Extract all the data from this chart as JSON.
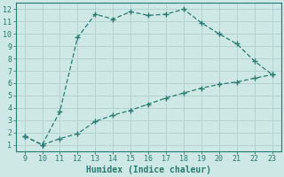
{
  "x_upper": [
    9,
    10,
    11,
    12,
    13,
    14,
    15,
    16,
    17,
    18,
    19,
    20,
    21,
    22,
    23
  ],
  "y_upper": [
    1.7,
    1.0,
    3.7,
    9.7,
    11.6,
    11.2,
    11.8,
    11.5,
    11.6,
    12.0,
    10.9,
    10.0,
    9.2,
    7.8,
    6.7
  ],
  "x_lower": [
    9,
    10,
    11,
    12,
    13,
    14,
    15,
    16,
    17,
    18,
    19,
    20,
    21,
    22,
    23
  ],
  "y_lower": [
    1.7,
    1.0,
    1.5,
    1.9,
    2.9,
    3.4,
    3.8,
    4.3,
    4.8,
    5.2,
    5.6,
    5.9,
    6.1,
    6.4,
    6.7
  ],
  "line_color": "#2a7a72",
  "bg_color": "#cde8e5",
  "grid_color": "#b0d0cc",
  "xlabel": "Humidex (Indice chaleur)",
  "xlim": [
    8.5,
    23.5
  ],
  "ylim": [
    0.5,
    12.5
  ],
  "xticks": [
    9,
    10,
    11,
    12,
    13,
    14,
    15,
    16,
    17,
    18,
    19,
    20,
    21,
    22,
    23
  ],
  "yticks": [
    1,
    2,
    3,
    4,
    5,
    6,
    7,
    8,
    9,
    10,
    11,
    12
  ],
  "tick_fontsize": 6,
  "xlabel_fontsize": 7,
  "marker_upper": "+",
  "marker_lower": "+",
  "marker_size": 4,
  "line_width": 0.9,
  "axis_color": "#2a7a72"
}
